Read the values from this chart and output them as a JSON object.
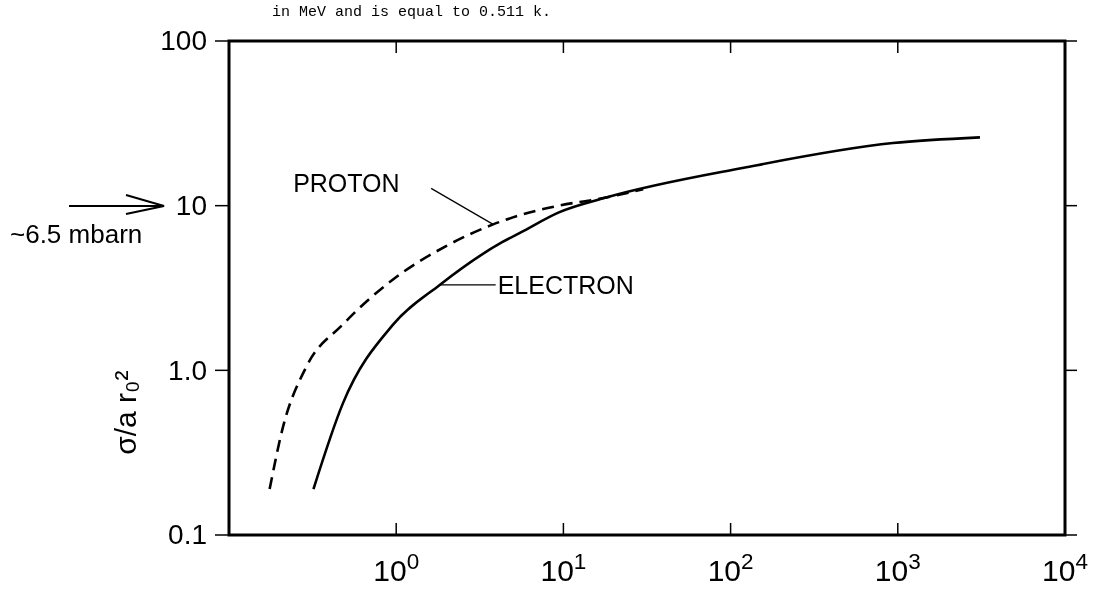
{
  "chart_data": {
    "type": "line",
    "ylabel": "σ/a r₀²",
    "annotations": [
      "in MeV and is equal to 0.511 k.",
      "~6.5 mbarn"
    ],
    "series": [
      {
        "name": "PROTON",
        "color": "#000000",
        "line_style": "dashed",
        "x": [
          0.175,
          0.21,
          0.29,
          0.48,
          0.97,
          2.0,
          3.8,
          5.6,
          9.4,
          18,
          30
        ],
        "values": [
          0.19,
          0.45,
          1.05,
          1.9,
          3.6,
          5.7,
          7.7,
          8.8,
          10,
          11.2,
          12.6
        ]
      },
      {
        "name": "ELECTRON",
        "color": "#000000",
        "line_style": "solid",
        "x": [
          0.32,
          0.48,
          0.96,
          1.82,
          4.3,
          5.6,
          9.4,
          18,
          120,
          935,
          3100
        ],
        "values": [
          0.19,
          0.63,
          1.9,
          3.3,
          6.0,
          6.9,
          9.1,
          11.2,
          17,
          24,
          26
        ]
      }
    ],
    "xlim": [
      0.1,
      10000
    ],
    "ylim": [
      0.1,
      100
    ],
    "xticks": [
      {
        "value": 1,
        "label": "10$^{0}$"
      },
      {
        "value": 10,
        "label": "10$^{1}$"
      },
      {
        "value": 100,
        "label": "10$^{2}$"
      },
      {
        "value": 1000,
        "label": "10$^{3}$"
      },
      {
        "value": 10000,
        "label": "10$^{4}$"
      }
    ],
    "yticks": [
      0.1,
      {
        "value": 1,
        "label": "1.0"
      },
      10,
      100
    ],
    "log": "xy",
    "grid": false
  }
}
